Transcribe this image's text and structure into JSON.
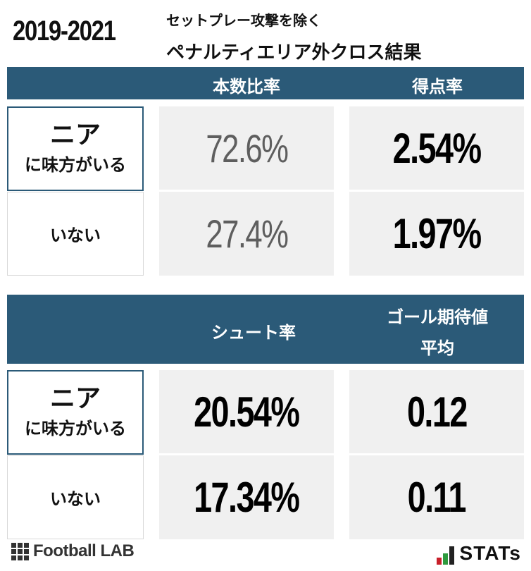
{
  "header": {
    "year": "2019-2021",
    "subtitle_line1": "セットプレー攻撃を除く",
    "subtitle_line2": "ペナルティエリア外クロス結果"
  },
  "table1": {
    "col1": "本数比率",
    "col2": "得点率",
    "rows": [
      {
        "label_big": "ニア",
        "label_small": "に味方がいる",
        "v1": "72.6%",
        "v2": "2.54%"
      },
      {
        "label": "いない",
        "v1": "27.4%",
        "v2": "1.97%"
      }
    ]
  },
  "table2": {
    "col1": "シュート率",
    "col2_line1": "ゴール期待値",
    "col2_line2": "平均",
    "rows": [
      {
        "label_big": "ニア",
        "label_small": "に味方がいる",
        "v1": "20.54%",
        "v2": "0.12"
      },
      {
        "label": "いない",
        "v1": "17.34%",
        "v2": "0.11"
      }
    ]
  },
  "footer": {
    "left_logo": "Football LAB",
    "right_logo": "STATs"
  },
  "colors": {
    "band": "#2b5a78",
    "cell_bg": "#f0f0f0",
    "stats_bar_red": "#c8202a",
    "stats_bar_green": "#2e9a3e"
  }
}
